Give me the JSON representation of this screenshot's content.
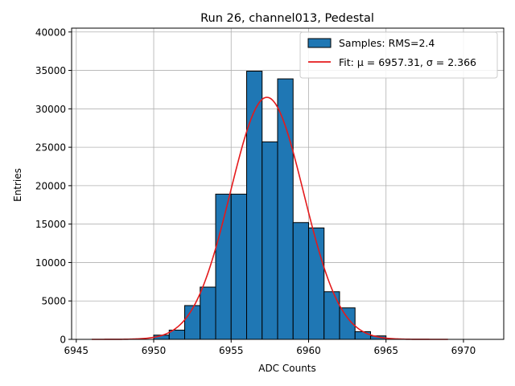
{
  "chart_data": {
    "type": "bar",
    "title": "Run 26, channel013, Pedestal",
    "xlabel": "ADC Counts",
    "ylabel": "Entries",
    "xlim": [
      6944.7,
      6972.6
    ],
    "ylim": [
      0,
      40500
    ],
    "xticks": [
      6945,
      6950,
      6955,
      6960,
      6965,
      6970
    ],
    "yticks": [
      0,
      5000,
      10000,
      15000,
      20000,
      25000,
      30000,
      35000,
      40000
    ],
    "grid": true,
    "legend_position": "top-right",
    "bins": [
      {
        "x0": 6950.0,
        "x1": 6951.0,
        "count": 550
      },
      {
        "x0": 6951.0,
        "x1": 6952.0,
        "count": 1200
      },
      {
        "x0": 6952.0,
        "x1": 6953.0,
        "count": 4400
      },
      {
        "x0": 6953.0,
        "x1": 6954.0,
        "count": 6800
      },
      {
        "x0": 6954.0,
        "x1": 6955.0,
        "count": 18900
      },
      {
        "x0": 6955.0,
        "x1": 6956.0,
        "count": 18900
      },
      {
        "x0": 6956.0,
        "x1": 6957.0,
        "count": 34900
      },
      {
        "x0": 6957.0,
        "x1": 6958.0,
        "count": 25700
      },
      {
        "x0": 6958.0,
        "x1": 6959.0,
        "count": 33900
      },
      {
        "x0": 6959.0,
        "x1": 6960.0,
        "count": 15200
      },
      {
        "x0": 6960.0,
        "x1": 6961.0,
        "count": 14500
      },
      {
        "x0": 6961.0,
        "x1": 6962.0,
        "count": 6200
      },
      {
        "x0": 6962.0,
        "x1": 6963.0,
        "count": 4100
      },
      {
        "x0": 6963.0,
        "x1": 6964.0,
        "count": 1000
      },
      {
        "x0": 6964.0,
        "x1": 6965.0,
        "count": 450
      }
    ],
    "series": [
      {
        "name": "Samples: RMS=2.4",
        "kind": "histogram",
        "color": "#1f77b4",
        "edge_color": "#000000"
      },
      {
        "name": "Fit: μ = 6957.31, σ = 2.366",
        "kind": "gaussian_fit",
        "color": "#e41a1c",
        "mu": 6957.31,
        "sigma": 2.366,
        "amplitude": 31500,
        "x_range": [
          6946.0,
          6969.0
        ]
      }
    ],
    "legend": {
      "samples_label": "Samples: RMS=2.4",
      "fit_label": "Fit: μ = 6957.31, σ = 2.366"
    }
  }
}
